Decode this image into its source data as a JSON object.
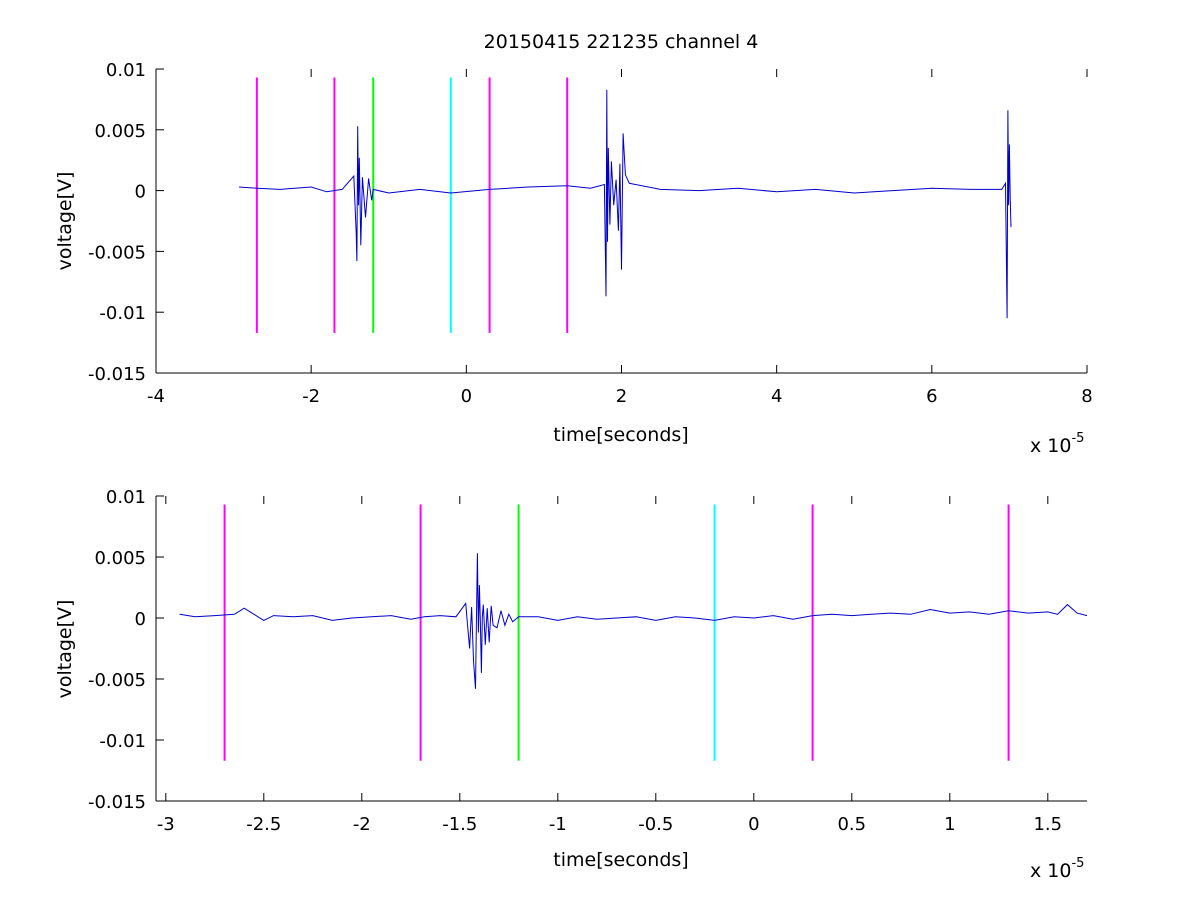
{
  "chart_data": [
    {
      "type": "line",
      "title": "20150415 221235 channel 4",
      "xlabel": "time[seconds]",
      "ylabel": "voltage[V]",
      "x_multiplier_label": "x 10",
      "x_multiplier_exp": "-5",
      "xlim": [
        -4,
        8
      ],
      "ylim": [
        -0.015,
        0.01
      ],
      "xticks": [
        "-4",
        "-2",
        "0",
        "2",
        "4",
        "6",
        "8"
      ],
      "yticks": [
        "0.01",
        "0.005",
        "0",
        "-0.005",
        "-0.01",
        "-0.015"
      ],
      "xtick_values": [
        -4,
        -2,
        0,
        2,
        4,
        6,
        8
      ],
      "ytick_values": [
        0.01,
        0.005,
        0,
        -0.005,
        -0.01,
        -0.015
      ],
      "grid": false,
      "markers": [
        {
          "x": -2.7,
          "color": "#ff00ff"
        },
        {
          "x": -1.7,
          "color": "#ff00ff"
        },
        {
          "x": -1.2,
          "color": "#00ff00"
        },
        {
          "x": -0.2,
          "color": "#00ffff"
        },
        {
          "x": 0.3,
          "color": "#ff00ff"
        },
        {
          "x": 1.3,
          "color": "#ff00ff"
        }
      ],
      "marker_range": [
        -0.0117,
        0.0093
      ],
      "series": [
        {
          "color": "#0000cd",
          "x": [
            -2.93,
            -2.7,
            -2.4,
            -2.0,
            -1.8,
            -1.6,
            -1.45,
            -1.42,
            -1.41,
            -1.4,
            -1.39,
            -1.38,
            -1.36,
            -1.34,
            -1.3,
            -1.26,
            -1.22,
            -1.2,
            -1.0,
            -0.6,
            -0.2,
            0.3,
            0.8,
            1.3,
            1.6,
            1.78,
            1.8,
            1.81,
            1.82,
            1.83,
            1.85,
            1.87,
            1.9,
            1.93,
            1.96,
            1.98,
            2.0,
            2.02,
            2.05,
            2.1,
            2.5,
            3.0,
            3.5,
            4.0,
            4.5,
            5.0,
            5.5,
            6.0,
            6.5,
            6.9,
            6.95,
            6.97,
            6.98,
            6.99,
            7.0,
            7.01,
            7.02
          ],
          "y": [
            0.0003,
            0.0002,
            0.0001,
            0.0003,
            -0.0001,
            0.0001,
            0.0012,
            -0.0035,
            -0.0058,
            0.0053,
            -0.0012,
            0.0027,
            -0.0045,
            0.0011,
            -0.0022,
            0.001,
            -0.0008,
            0.0001,
            -0.0002,
            0.0001,
            -0.0002,
            0.0001,
            0.0003,
            0.0004,
            0.0002,
            0.0005,
            -0.0087,
            0.0083,
            -0.0042,
            0.0035,
            -0.0028,
            0.0024,
            -0.0012,
            0.0009,
            -0.0033,
            0.0022,
            -0.0065,
            0.0047,
            0.0013,
            0.0006,
            0.0001,
            0.0,
            0.0002,
            -0.0001,
            0.0001,
            -0.0002,
            0.0,
            0.0002,
            0.0001,
            0.0001,
            0.0006,
            -0.0105,
            0.0066,
            -0.0012,
            0.0038,
            -0.0006,
            -0.003
          ]
        }
      ]
    },
    {
      "type": "line",
      "xlabel": "time[seconds]",
      "ylabel": "voltage[V]",
      "x_multiplier_label": "x 10",
      "x_multiplier_exp": "-5",
      "xlim": [
        -3.05,
        1.7
      ],
      "ylim": [
        -0.015,
        0.01
      ],
      "xticks": [
        "-3",
        "-2.5",
        "-2",
        "-1.5",
        "-1",
        "-0.5",
        "0",
        "0.5",
        "1",
        "1.5"
      ],
      "yticks": [
        "0.01",
        "0.005",
        "0",
        "-0.005",
        "-0.01",
        "-0.015"
      ],
      "xtick_values": [
        -3,
        -2.5,
        -2,
        -1.5,
        -1,
        -0.5,
        0,
        0.5,
        1,
        1.5
      ],
      "ytick_values": [
        0.01,
        0.005,
        0,
        -0.005,
        -0.01,
        -0.015
      ],
      "grid": false,
      "markers": [
        {
          "x": -2.7,
          "color": "#ff00ff"
        },
        {
          "x": -1.7,
          "color": "#ff00ff"
        },
        {
          "x": -1.2,
          "color": "#00ff00"
        },
        {
          "x": -0.2,
          "color": "#00ffff"
        },
        {
          "x": 0.3,
          "color": "#ff00ff"
        },
        {
          "x": 1.3,
          "color": "#ff00ff"
        }
      ],
      "marker_range": [
        -0.0117,
        0.0093
      ],
      "series": [
        {
          "color": "#0000cd",
          "x": [
            -2.93,
            -2.85,
            -2.75,
            -2.65,
            -2.6,
            -2.55,
            -2.5,
            -2.45,
            -2.35,
            -2.25,
            -2.15,
            -2.05,
            -1.95,
            -1.85,
            -1.75,
            -1.68,
            -1.6,
            -1.52,
            -1.47,
            -1.45,
            -1.44,
            -1.43,
            -1.42,
            -1.415,
            -1.41,
            -1.405,
            -1.4,
            -1.395,
            -1.39,
            -1.385,
            -1.38,
            -1.37,
            -1.36,
            -1.35,
            -1.34,
            -1.33,
            -1.31,
            -1.29,
            -1.27,
            -1.25,
            -1.23,
            -1.2,
            -1.1,
            -1.0,
            -0.9,
            -0.8,
            -0.7,
            -0.6,
            -0.5,
            -0.4,
            -0.3,
            -0.2,
            -0.1,
            0.0,
            0.1,
            0.2,
            0.3,
            0.4,
            0.5,
            0.6,
            0.7,
            0.8,
            0.9,
            1.0,
            1.1,
            1.2,
            1.3,
            1.4,
            1.5,
            1.55,
            1.6,
            1.65,
            1.7
          ],
          "y": [
            0.0003,
            0.0001,
            0.0002,
            0.0003,
            0.0008,
            0.0003,
            -0.0002,
            0.0002,
            0.0001,
            0.0002,
            -0.0002,
            0.0,
            0.0001,
            0.0002,
            -0.0001,
            0.0001,
            0.0002,
            0.0001,
            0.0012,
            -0.0025,
            0.0009,
            -0.0035,
            -0.0058,
            0.0002,
            0.0053,
            -0.0012,
            0.0027,
            -0.0005,
            -0.0045,
            0.0001,
            0.0011,
            -0.0022,
            0.0008,
            -0.002,
            0.001,
            -0.0006,
            -0.0008,
            0.0006,
            -0.0006,
            0.0003,
            -0.0003,
            0.0001,
            0.0001,
            -0.0002,
            0.0001,
            -0.0001,
            0.0,
            0.0001,
            -0.0002,
            0.0001,
            0.0,
            -0.0002,
            0.0001,
            0.0,
            0.0002,
            -0.0001,
            0.0002,
            0.0003,
            0.0002,
            0.0003,
            0.0004,
            0.0003,
            0.0007,
            0.0004,
            0.0005,
            0.0003,
            0.0006,
            0.0004,
            0.0005,
            0.0003,
            0.0011,
            0.0004,
            0.0002
          ]
        }
      ]
    }
  ]
}
